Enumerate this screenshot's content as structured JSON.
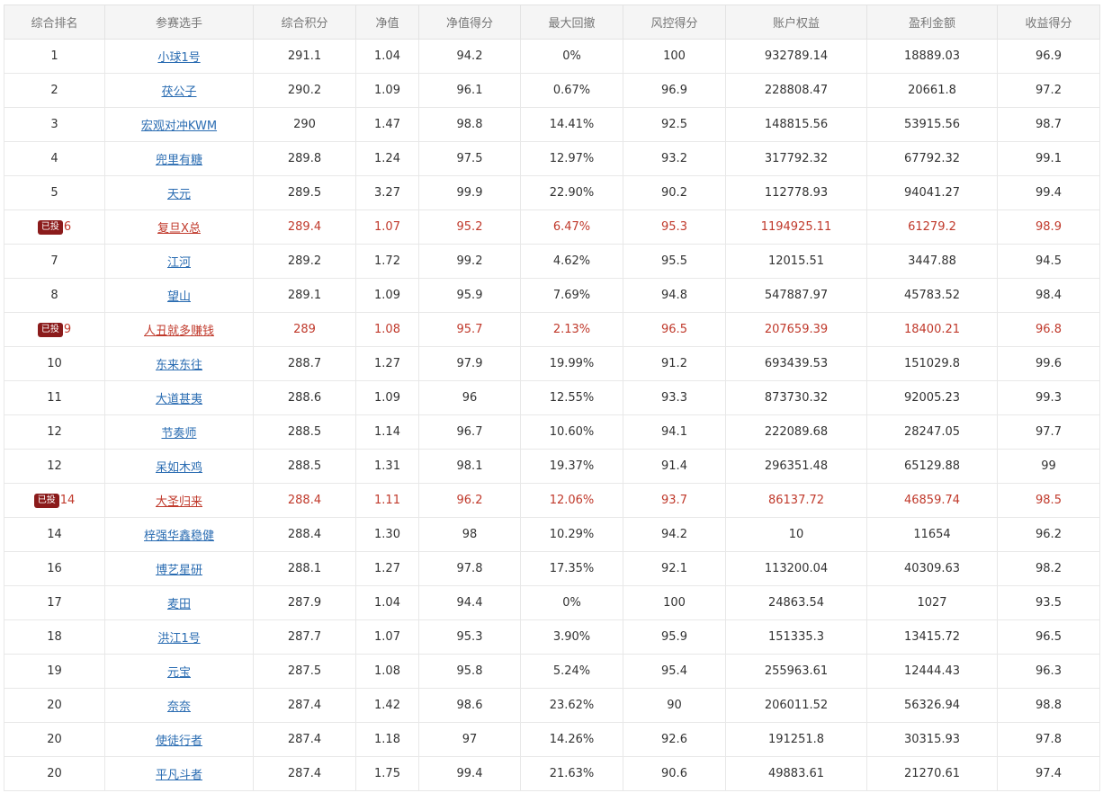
{
  "colors": {
    "highlight_text": "#c0392b",
    "link": "#2a6cb2",
    "badge_bg": "#8b1b1b",
    "header_bg": "#f5f5f5"
  },
  "table": {
    "headers": [
      "综合排名",
      "参赛选手",
      "综合积分",
      "净值",
      "净值得分",
      "最大回撤",
      "风控得分",
      "账户权益",
      "盈利金额",
      "收益得分"
    ],
    "rows": [
      {
        "rank": "1",
        "player": "小球1号",
        "score": "291.1",
        "nav": "1.04",
        "nav_score": "94.2",
        "drawdown": "0%",
        "risk_score": "100",
        "equity": "932789.14",
        "profit": "18889.03",
        "return_score": "96.9"
      },
      {
        "rank": "2",
        "player": "茯公子",
        "score": "290.2",
        "nav": "1.09",
        "nav_score": "96.1",
        "drawdown": "0.67%",
        "risk_score": "96.9",
        "equity": "228808.47",
        "profit": "20661.8",
        "return_score": "97.2"
      },
      {
        "rank": "3",
        "player": "宏观对冲KWM",
        "score": "290",
        "nav": "1.47",
        "nav_score": "98.8",
        "drawdown": "14.41%",
        "risk_score": "92.5",
        "equity": "148815.56",
        "profit": "53915.56",
        "return_score": "98.7"
      },
      {
        "rank": "4",
        "player": "兜里有糖",
        "score": "289.8",
        "nav": "1.24",
        "nav_score": "97.5",
        "drawdown": "12.97%",
        "risk_score": "93.2",
        "equity": "317792.32",
        "profit": "67792.32",
        "return_score": "99.1"
      },
      {
        "rank": "5",
        "player": "天元",
        "score": "289.5",
        "nav": "3.27",
        "nav_score": "99.9",
        "drawdown": "22.90%",
        "risk_score": "90.2",
        "equity": "112778.93",
        "profit": "94041.27",
        "return_score": "99.4"
      },
      {
        "rank": "6",
        "badge": "已投",
        "player": "复旦X总",
        "score": "289.4",
        "nav": "1.07",
        "nav_score": "95.2",
        "drawdown": "6.47%",
        "risk_score": "95.3",
        "equity": "1194925.11",
        "profit": "61279.2",
        "return_score": "98.9"
      },
      {
        "rank": "7",
        "player": "江河",
        "score": "289.2",
        "nav": "1.72",
        "nav_score": "99.2",
        "drawdown": "4.62%",
        "risk_score": "95.5",
        "equity": "12015.51",
        "profit": "3447.88",
        "return_score": "94.5"
      },
      {
        "rank": "8",
        "player": "望山",
        "score": "289.1",
        "nav": "1.09",
        "nav_score": "95.9",
        "drawdown": "7.69%",
        "risk_score": "94.8",
        "equity": "547887.97",
        "profit": "45783.52",
        "return_score": "98.4"
      },
      {
        "rank": "9",
        "badge": "已投",
        "player": "人丑就多赚钱",
        "score": "289",
        "nav": "1.08",
        "nav_score": "95.7",
        "drawdown": "2.13%",
        "risk_score": "96.5",
        "equity": "207659.39",
        "profit": "18400.21",
        "return_score": "96.8"
      },
      {
        "rank": "10",
        "player": "东来东往",
        "score": "288.7",
        "nav": "1.27",
        "nav_score": "97.9",
        "drawdown": "19.99%",
        "risk_score": "91.2",
        "equity": "693439.53",
        "profit": "151029.8",
        "return_score": "99.6"
      },
      {
        "rank": "11",
        "player": "大道甚夷",
        "score": "288.6",
        "nav": "1.09",
        "nav_score": "96",
        "drawdown": "12.55%",
        "risk_score": "93.3",
        "equity": "873730.32",
        "profit": "92005.23",
        "return_score": "99.3"
      },
      {
        "rank": "12",
        "player": "节奏师",
        "score": "288.5",
        "nav": "1.14",
        "nav_score": "96.7",
        "drawdown": "10.60%",
        "risk_score": "94.1",
        "equity": "222089.68",
        "profit": "28247.05",
        "return_score": "97.7"
      },
      {
        "rank": "12",
        "player": "呆如木鸡",
        "score": "288.5",
        "nav": "1.31",
        "nav_score": "98.1",
        "drawdown": "19.37%",
        "risk_score": "91.4",
        "equity": "296351.48",
        "profit": "65129.88",
        "return_score": "99"
      },
      {
        "rank": "14",
        "badge": "已投",
        "player": "大圣归来",
        "score": "288.4",
        "nav": "1.11",
        "nav_score": "96.2",
        "drawdown": "12.06%",
        "risk_score": "93.7",
        "equity": "86137.72",
        "profit": "46859.74",
        "return_score": "98.5"
      },
      {
        "rank": "14",
        "player": "梓强华鑫稳健",
        "score": "288.4",
        "nav": "1.30",
        "nav_score": "98",
        "drawdown": "10.29%",
        "risk_score": "94.2",
        "equity": "10",
        "profit": "11654",
        "return_score": "96.2"
      },
      {
        "rank": "16",
        "player": "博艺星研",
        "score": "288.1",
        "nav": "1.27",
        "nav_score": "97.8",
        "drawdown": "17.35%",
        "risk_score": "92.1",
        "equity": "113200.04",
        "profit": "40309.63",
        "return_score": "98.2"
      },
      {
        "rank": "17",
        "player": "麦田",
        "score": "287.9",
        "nav": "1.04",
        "nav_score": "94.4",
        "drawdown": "0%",
        "risk_score": "100",
        "equity": "24863.54",
        "profit": "1027",
        "return_score": "93.5"
      },
      {
        "rank": "18",
        "player": "洪江1号",
        "score": "287.7",
        "nav": "1.07",
        "nav_score": "95.3",
        "drawdown": "3.90%",
        "risk_score": "95.9",
        "equity": "151335.3",
        "profit": "13415.72",
        "return_score": "96.5"
      },
      {
        "rank": "19",
        "player": "元宝",
        "score": "287.5",
        "nav": "1.08",
        "nav_score": "95.8",
        "drawdown": "5.24%",
        "risk_score": "95.4",
        "equity": "255963.61",
        "profit": "12444.43",
        "return_score": "96.3"
      },
      {
        "rank": "20",
        "player": "奈奈",
        "score": "287.4",
        "nav": "1.42",
        "nav_score": "98.6",
        "drawdown": "23.62%",
        "risk_score": "90",
        "equity": "206011.52",
        "profit": "56326.94",
        "return_score": "98.8"
      },
      {
        "rank": "20",
        "player": "使徒行者",
        "score": "287.4",
        "nav": "1.18",
        "nav_score": "97",
        "drawdown": "14.26%",
        "risk_score": "92.6",
        "equity": "191251.8",
        "profit": "30315.93",
        "return_score": "97.8"
      },
      {
        "rank": "20",
        "player": "平凡斗者",
        "score": "287.4",
        "nav": "1.75",
        "nav_score": "99.4",
        "drawdown": "21.63%",
        "risk_score": "90.6",
        "equity": "49883.61",
        "profit": "21270.61",
        "return_score": "97.4"
      }
    ]
  }
}
